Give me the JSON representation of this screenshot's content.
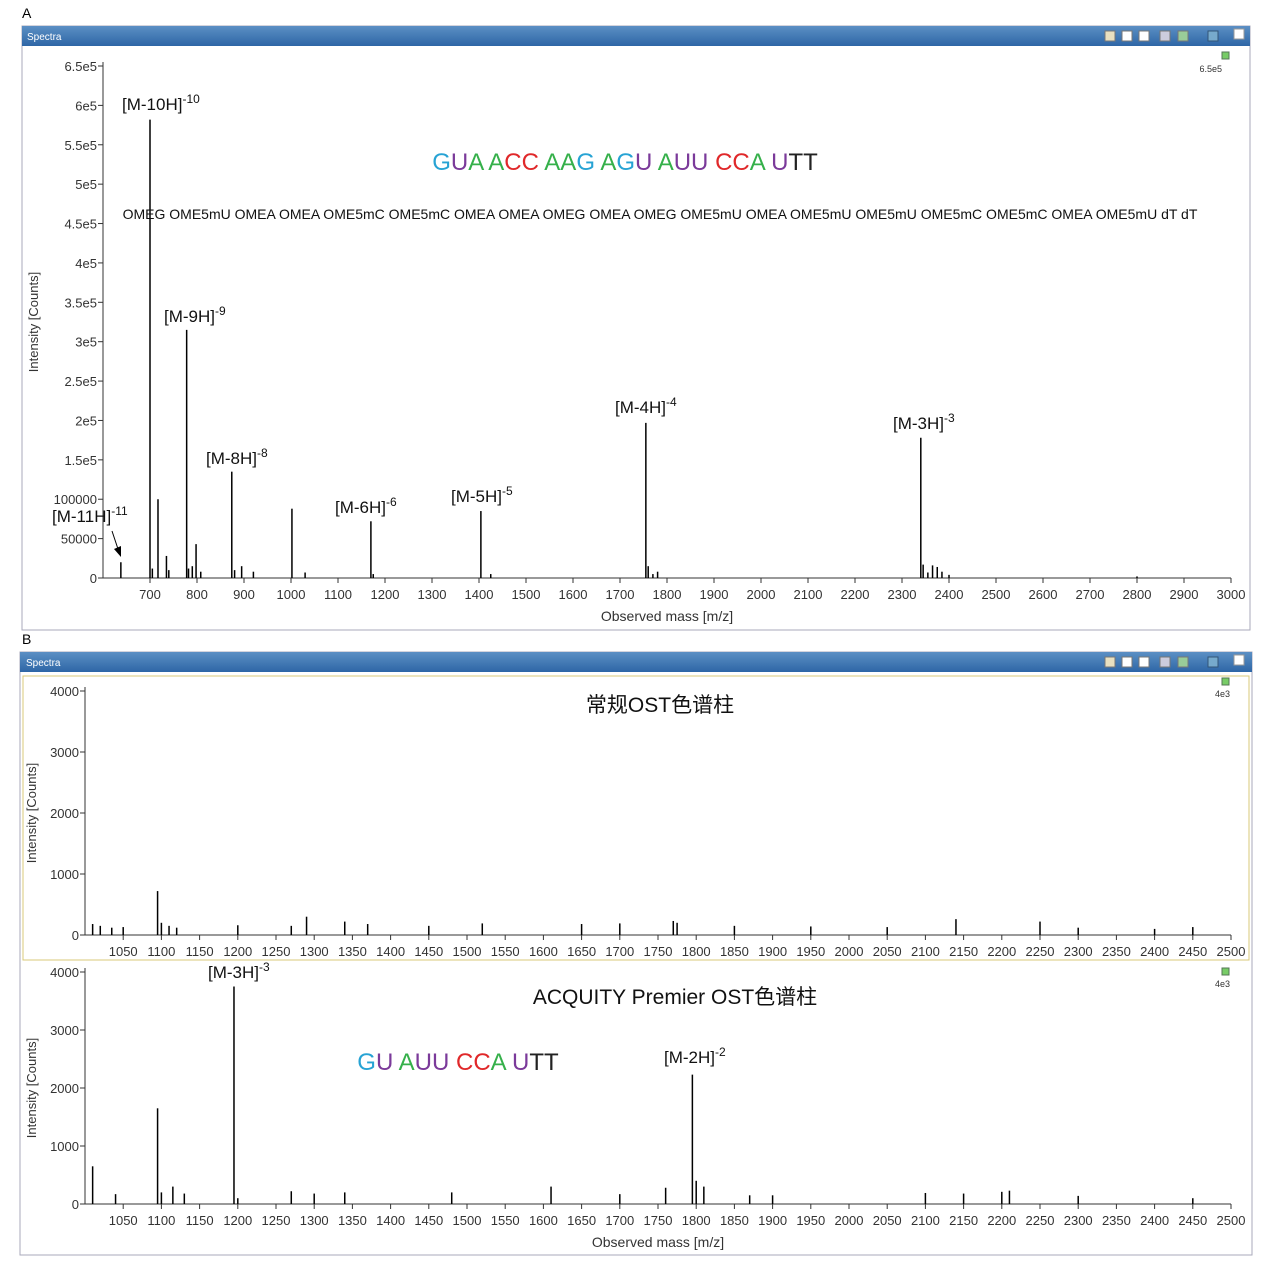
{
  "panels": [
    {
      "label": "A",
      "header": "Spectra"
    },
    {
      "label": "B",
      "header": "Spectra"
    }
  ],
  "chart_data": [
    {
      "type": "spectrum",
      "color": "#000000",
      "sequence": [
        {
          "text": "G",
          "color": "#27a3d4"
        },
        {
          "text": "U",
          "color": "#7b3a9a"
        },
        {
          "text": "A ",
          "color": "#35b04a"
        },
        {
          "text": "A",
          "color": "#35b04a"
        },
        {
          "text": "CC ",
          "color": "#e0282a"
        },
        {
          "text": "AA",
          "color": "#35b04a"
        },
        {
          "text": "G ",
          "color": "#27a3d4"
        },
        {
          "text": "A",
          "color": "#35b04a"
        },
        {
          "text": "G",
          "color": "#27a3d4"
        },
        {
          "text": "U ",
          "color": "#7b3a9a"
        },
        {
          "text": "A",
          "color": "#35b04a"
        },
        {
          "text": "UU ",
          "color": "#7b3a9a"
        },
        {
          "text": "CC",
          "color": "#e0282a"
        },
        {
          "text": "A ",
          "color": "#35b04a"
        },
        {
          "text": "U",
          "color": "#7b3a9a"
        },
        {
          "text": "TT",
          "color": "#222222"
        }
      ],
      "modifications": "OMEG OME5mU OMEA OMEA OME5mC OME5mC OMEA OMEA OMEG OMEA OMEG OME5mU OMEA OME5mU OME5mU OME5mC OME5mC OMEA OME5mU dT dT",
      "x": [
        638,
        700,
        705,
        717,
        735,
        740,
        778,
        782,
        790,
        798,
        808,
        874,
        880,
        895,
        920,
        1002,
        1030,
        1170,
        1175,
        1404,
        1425,
        1755,
        1760,
        1770,
        1780,
        2340,
        2345,
        2355,
        2365,
        2375,
        2385,
        2400,
        2800
      ],
      "values": [
        20000,
        582000,
        12000,
        100000,
        28000,
        10000,
        315000,
        12000,
        15000,
        43000,
        8000,
        135000,
        10000,
        15000,
        8000,
        88000,
        7000,
        72000,
        5000,
        85000,
        5000,
        197000,
        15000,
        5000,
        8000,
        178000,
        17000,
        7000,
        16000,
        14000,
        8000,
        4000,
        2000
      ],
      "xlim": [
        600,
        3000
      ],
      "ylim": [
        0,
        650000
      ],
      "xticks": [
        700,
        800,
        900,
        1000,
        1100,
        1200,
        1300,
        1400,
        1500,
        1600,
        1700,
        1800,
        1900,
        2000,
        2100,
        2200,
        2300,
        2400,
        2500,
        2600,
        2700,
        2800,
        2900,
        3000
      ],
      "yticks": [
        0,
        50000,
        100000,
        {
          "value": 150000,
          "label": "1.5e5"
        },
        {
          "value": 200000,
          "label": "2e5"
        },
        {
          "value": 250000,
          "label": "2.5e5"
        },
        {
          "value": 300000,
          "label": "3e5"
        },
        {
          "value": 350000,
          "label": "3.5e5"
        },
        {
          "value": 400000,
          "label": "4e5"
        },
        {
          "value": 450000,
          "label": "4.5e5"
        },
        {
          "value": 500000,
          "label": "5e5"
        },
        {
          "value": 550000,
          "label": "5.5e5"
        },
        {
          "value": 600000,
          "label": "6e5"
        },
        {
          "value": 650000,
          "label": "6.5e5"
        }
      ],
      "y_label": "Intensity [Counts]",
      "x_label": "Observed mass [m/z]",
      "scale_label": "6.5e5",
      "annotations": [
        {
          "text": "[M-10H]",
          "sup": "-10"
        },
        {
          "text": "[M-9H]",
          "sup": "-9"
        },
        {
          "text": "[M-8H]",
          "sup": "-8"
        },
        {
          "text": "[M-6H]",
          "sup": "-6"
        },
        {
          "text": "[M-5H]",
          "sup": "-5"
        },
        {
          "text": "[M-4H]",
          "sup": "-4"
        },
        {
          "text": "[M-3H]",
          "sup": "-3"
        },
        {
          "text": "[M-11H]",
          "sup": "-11"
        }
      ]
    },
    {
      "type": "spectrum",
      "color": "#000000",
      "title": "常规OST色谱柱",
      "x": [
        1010,
        1020,
        1035,
        1050,
        1095,
        1100,
        1110,
        1120,
        1200,
        1270,
        1290,
        1340,
        1370,
        1450,
        1520,
        1650,
        1700,
        1770,
        1775,
        1850,
        1950,
        2050,
        2140,
        2250,
        2300,
        2400,
        2450
      ],
      "values": [
        180,
        150,
        120,
        130,
        720,
        200,
        150,
        120,
        160,
        150,
        300,
        220,
        180,
        150,
        190,
        180,
        190,
        230,
        200,
        150,
        140,
        130,
        260,
        220,
        120,
        100,
        130
      ],
      "xlim": [
        1000,
        2500
      ],
      "ylim": [
        0,
        4000
      ],
      "xticks": [
        1050,
        1100,
        1150,
        1200,
        1250,
        1300,
        1350,
        1400,
        1450,
        1500,
        1550,
        1600,
        1650,
        1700,
        1750,
        1800,
        1850,
        1900,
        1950,
        2000,
        2050,
        2100,
        2150,
        2200,
        2250,
        2300,
        2350,
        2400,
        2450,
        2500
      ],
      "yticks": [
        0,
        1000,
        2000,
        3000,
        4000
      ],
      "y_label": "Intensity [Counts]",
      "scale_label": "4e3",
      "annotations": []
    },
    {
      "type": "spectrum",
      "color": "#000000",
      "title": "ACQUITY Premier OST色谱柱",
      "sequence": [
        {
          "text": "G",
          "color": "#27a3d4"
        },
        {
          "text": "U ",
          "color": "#7b3a9a"
        },
        {
          "text": "A",
          "color": "#35b04a"
        },
        {
          "text": "UU ",
          "color": "#7b3a9a"
        },
        {
          "text": "CC",
          "color": "#e0282a"
        },
        {
          "text": "A ",
          "color": "#35b04a"
        },
        {
          "text": "U",
          "color": "#7b3a9a"
        },
        {
          "text": "TT",
          "color": "#222222"
        }
      ],
      "x": [
        1010,
        1040,
        1095,
        1100,
        1115,
        1130,
        1195,
        1200,
        1270,
        1300,
        1340,
        1480,
        1610,
        1700,
        1760,
        1795,
        1800,
        1810,
        1870,
        1900,
        2100,
        2150,
        2200,
        2210,
        2300,
        2450
      ],
      "values": [
        650,
        170,
        1650,
        200,
        300,
        180,
        3750,
        100,
        220,
        180,
        200,
        200,
        300,
        170,
        280,
        2230,
        400,
        300,
        150,
        150,
        190,
        180,
        210,
        230,
        140,
        100
      ],
      "xlim": [
        1000,
        2500
      ],
      "ylim": [
        0,
        4000
      ],
      "xticks": [
        1050,
        1100,
        1150,
        1200,
        1250,
        1300,
        1350,
        1400,
        1450,
        1500,
        1550,
        1600,
        1650,
        1700,
        1750,
        1800,
        1850,
        1900,
        1950,
        2000,
        2050,
        2100,
        2150,
        2200,
        2250,
        2300,
        2350,
        2400,
        2450,
        2500
      ],
      "yticks": [
        0,
        1000,
        2000,
        3000,
        4000
      ],
      "y_label": "Intensity [Counts]",
      "x_label": "Observed mass [m/z]",
      "scale_label": "4e3",
      "annotations": [
        {
          "text": "[M-3H]",
          "sup": "-3"
        },
        {
          "text": "[M-2H]",
          "sup": "-2"
        }
      ]
    }
  ]
}
